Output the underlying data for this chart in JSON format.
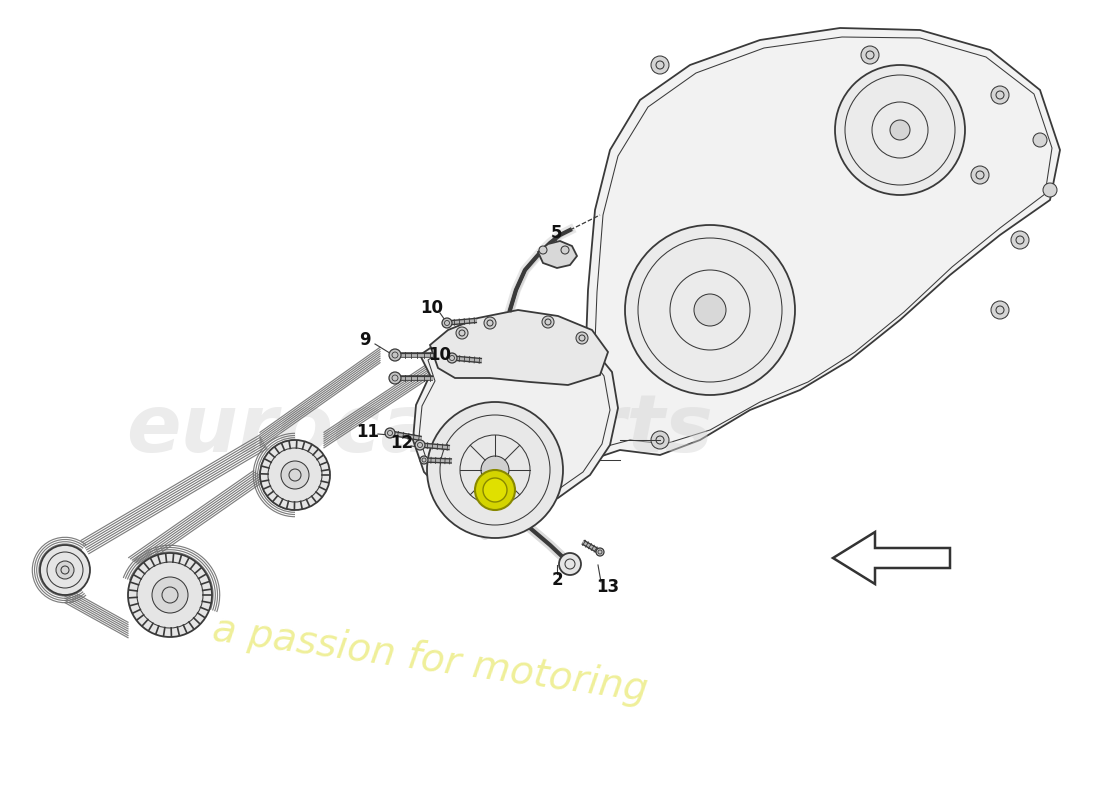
{
  "background_color": "#ffffff",
  "line_color": "#3a3a3a",
  "belt_color": "#707070",
  "highlight_yellow": "#d4d400",
  "label_color": "#111111",
  "fig_width": 11.0,
  "fig_height": 8.0,
  "dpi": 100,
  "lw_main": 1.3,
  "lw_thin": 0.75,
  "lw_belt": 1.0
}
